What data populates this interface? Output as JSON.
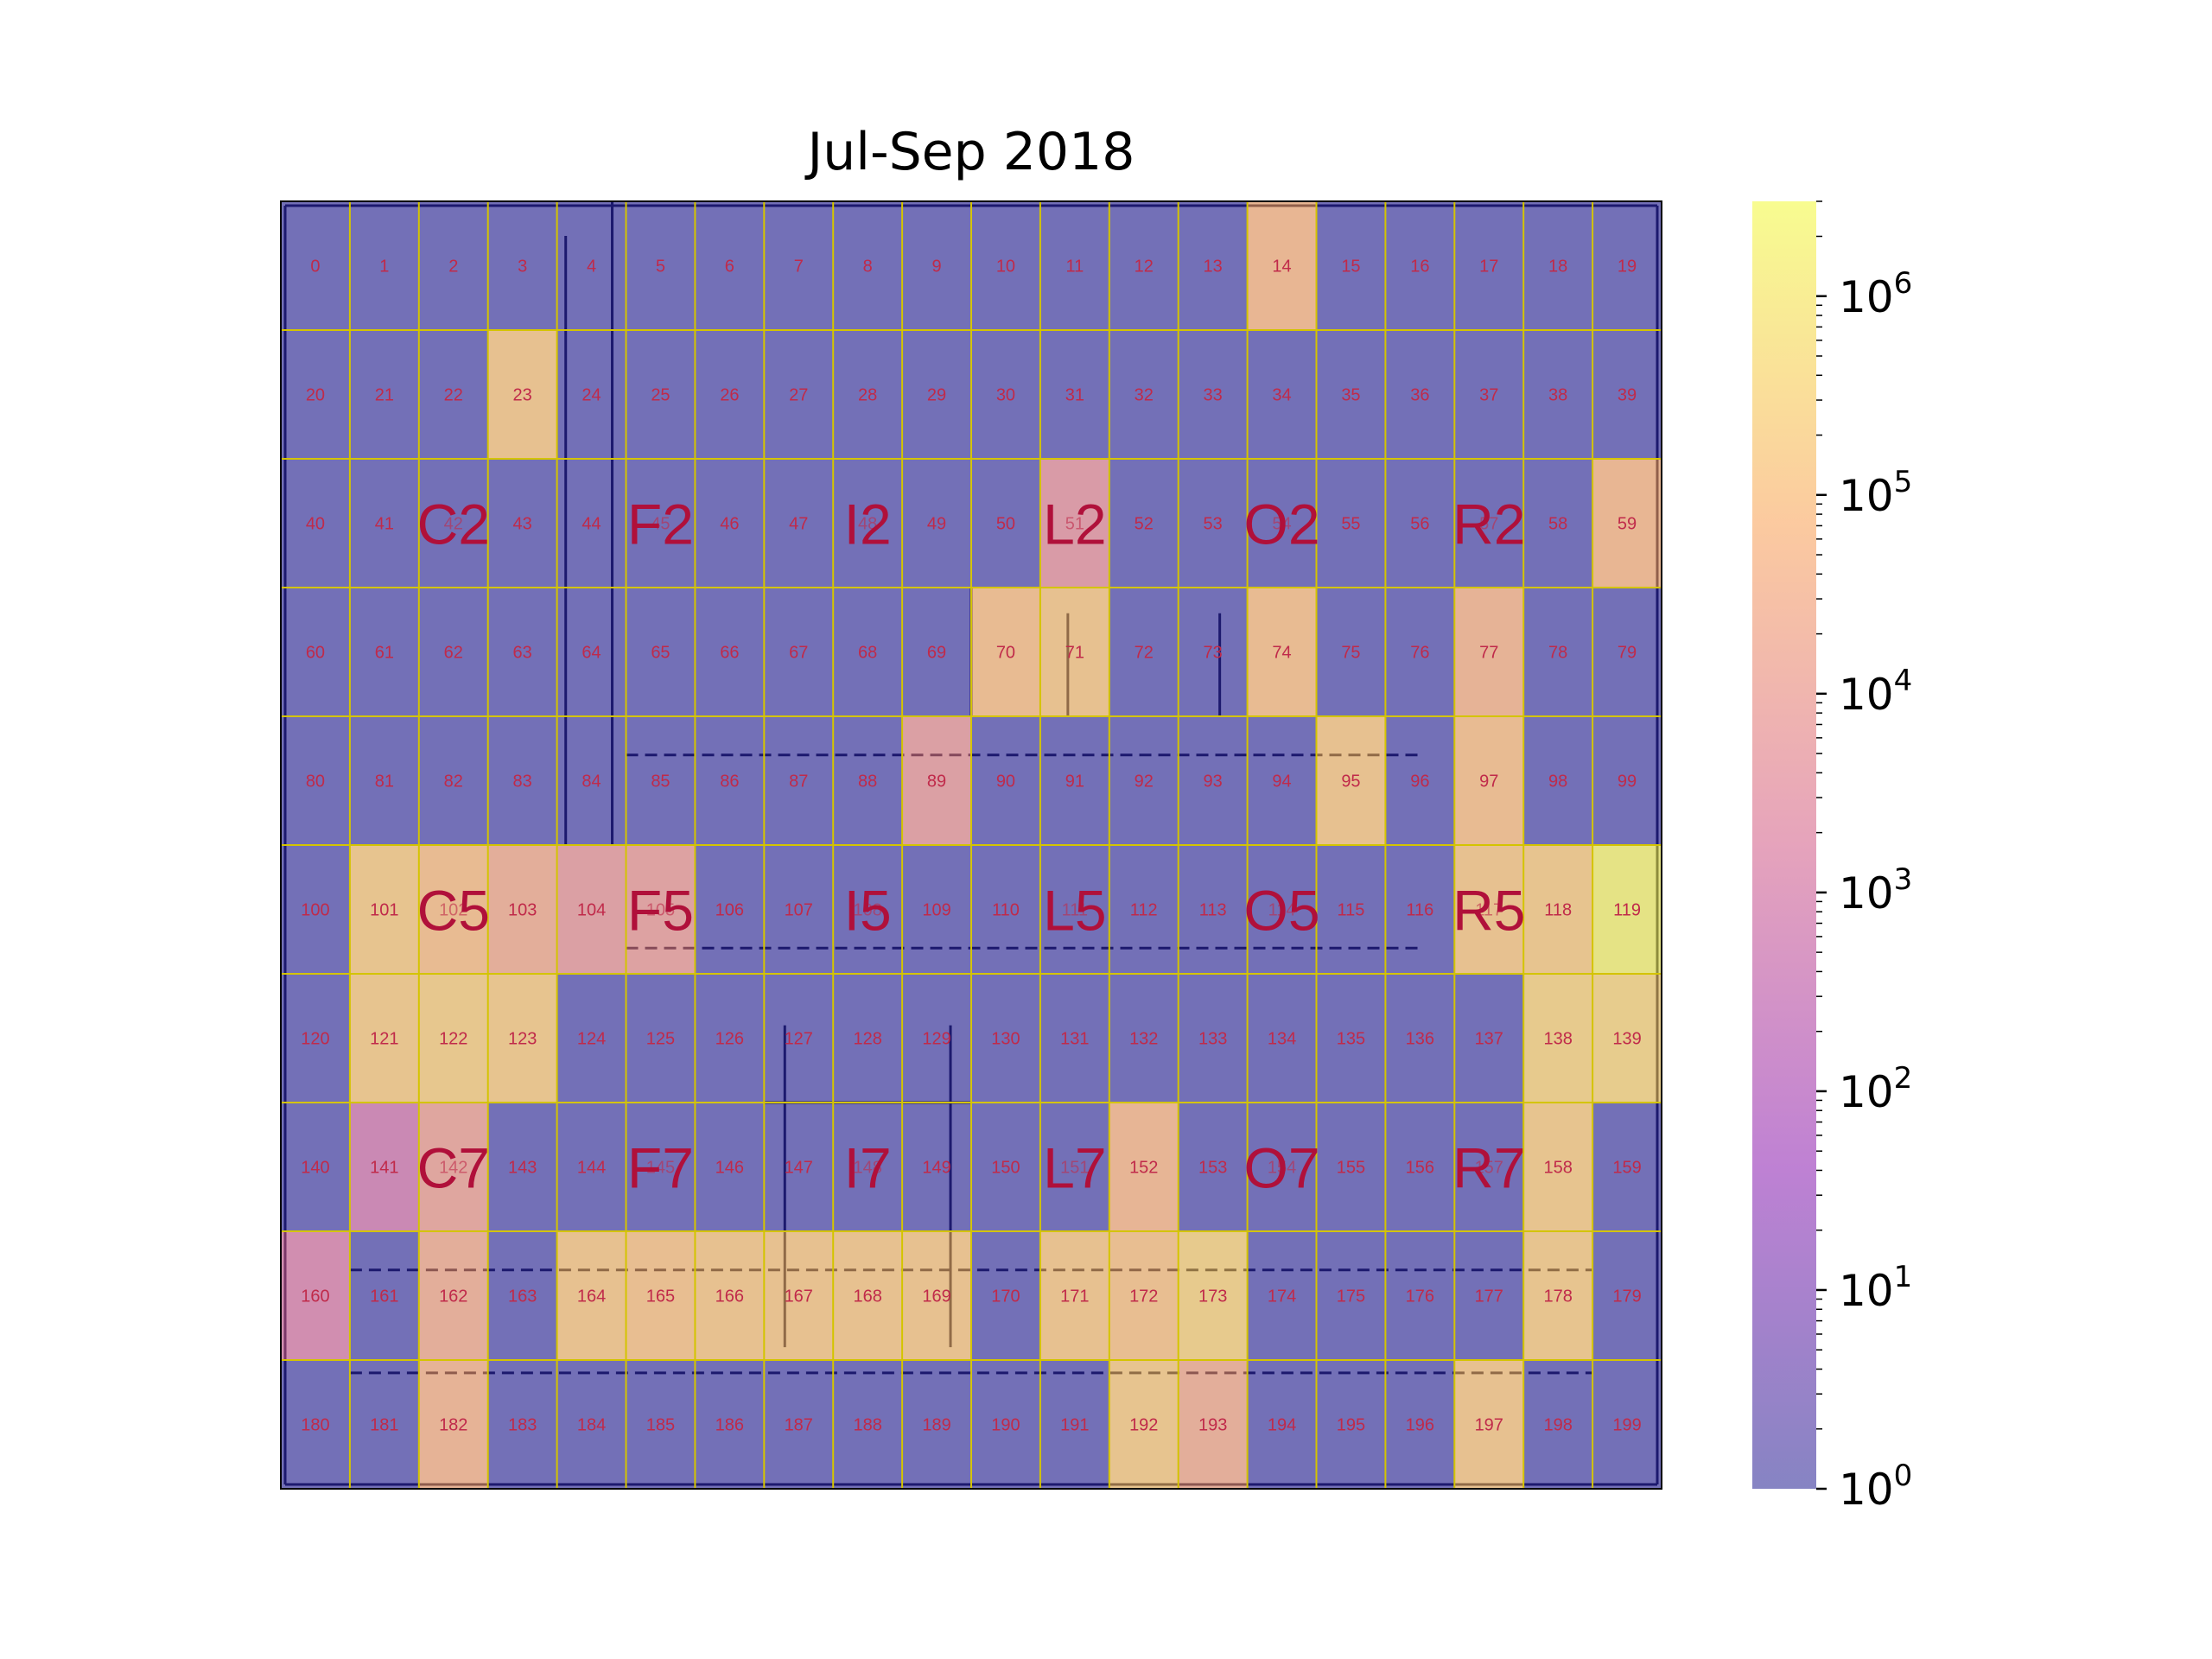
{
  "chart_data": {
    "type": "heatmap",
    "title": "Jul-Sep 2018",
    "xlabel": "",
    "ylabel": "",
    "rows": 10,
    "cols": 20,
    "scale": "log",
    "colormap": "plasma",
    "colormap_stops": [
      "#0d0887",
      "#7e03a8",
      "#cc4778",
      "#f89540",
      "#f0f921"
    ],
    "alpha": 0.5,
    "vmin": 1,
    "vmax": 3000000,
    "colorbar_ticks": [
      1,
      10,
      100,
      1000,
      10000,
      100000,
      1000000
    ],
    "colorbar_tick_labels": [
      {
        "base": "10",
        "exp": "0"
      },
      {
        "base": "10",
        "exp": "1"
      },
      {
        "base": "10",
        "exp": "2"
      },
      {
        "base": "10",
        "exp": "3"
      },
      {
        "base": "10",
        "exp": "4"
      },
      {
        "base": "10",
        "exp": "5"
      },
      {
        "base": "10",
        "exp": "6"
      }
    ],
    "grid": true,
    "grid_color": "#d4c400",
    "cell_labels": "index 0-199, row-major",
    "cells": [
      {
        "id": 14,
        "value": 70000
      },
      {
        "id": 23,
        "value": 150000
      },
      {
        "id": 51,
        "value": 5000
      },
      {
        "id": 59,
        "value": 70000
      },
      {
        "id": 70,
        "value": 100000
      },
      {
        "id": 71,
        "value": 150000
      },
      {
        "id": 74,
        "value": 100000
      },
      {
        "id": 77,
        "value": 50000
      },
      {
        "id": 89,
        "value": 8000
      },
      {
        "id": 95,
        "value": 150000
      },
      {
        "id": 97,
        "value": 100000
      },
      {
        "id": 101,
        "value": 200000
      },
      {
        "id": 102,
        "value": 100000
      },
      {
        "id": 103,
        "value": 30000
      },
      {
        "id": 104,
        "value": 8000
      },
      {
        "id": 105,
        "value": 10000
      },
      {
        "id": 117,
        "value": 150000
      },
      {
        "id": 118,
        "value": 200000
      },
      {
        "id": 119,
        "value": 2000000
      },
      {
        "id": 121,
        "value": 200000
      },
      {
        "id": 122,
        "value": 250000
      },
      {
        "id": 123,
        "value": 200000
      },
      {
        "id": 138,
        "value": 300000
      },
      {
        "id": 139,
        "value": 350000
      },
      {
        "id": 141,
        "value": 800
      },
      {
        "id": 142,
        "value": 15000
      },
      {
        "id": 152,
        "value": 60000
      },
      {
        "id": 158,
        "value": 200000
      },
      {
        "id": 160,
        "value": 1500
      },
      {
        "id": 162,
        "value": 30000
      },
      {
        "id": 164,
        "value": 150000
      },
      {
        "id": 165,
        "value": 120000
      },
      {
        "id": 166,
        "value": 150000
      },
      {
        "id": 167,
        "value": 150000
      },
      {
        "id": 168,
        "value": 150000
      },
      {
        "id": 169,
        "value": 150000
      },
      {
        "id": 171,
        "value": 150000
      },
      {
        "id": 172,
        "value": 120000
      },
      {
        "id": 173,
        "value": 300000
      },
      {
        "id": 178,
        "value": 200000
      },
      {
        "id": 182,
        "value": 50000
      },
      {
        "id": 192,
        "value": 200000
      },
      {
        "id": 193,
        "value": 30000
      },
      {
        "id": 197,
        "value": 150000
      }
    ],
    "zone_labels": [
      {
        "text": "C2",
        "cell": 42
      },
      {
        "text": "F2",
        "cell": 45
      },
      {
        "text": "I2",
        "cell": 48
      },
      {
        "text": "L2",
        "cell": 51
      },
      {
        "text": "O2",
        "cell": 54
      },
      {
        "text": "R2",
        "cell": 57
      },
      {
        "text": "C5",
        "cell": 102
      },
      {
        "text": "F5",
        "cell": 105
      },
      {
        "text": "I5",
        "cell": 108
      },
      {
        "text": "L5",
        "cell": 111
      },
      {
        "text": "O5",
        "cell": 114
      },
      {
        "text": "R5",
        "cell": 117
      },
      {
        "text": "C7",
        "cell": 142
      },
      {
        "text": "F7",
        "cell": 145
      },
      {
        "text": "I7",
        "cell": 148
      },
      {
        "text": "L7",
        "cell": 151
      },
      {
        "text": "O7",
        "cell": 154
      },
      {
        "text": "R7",
        "cell": 157
      }
    ]
  }
}
